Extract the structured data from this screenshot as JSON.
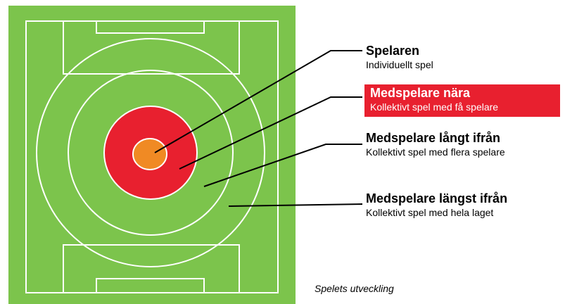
{
  "labels": [
    {
      "title": "Spelaren",
      "subtitle": "Individuellt spel"
    },
    {
      "title": "Medspelare nära",
      "subtitle": "Kollektivt spel med få spelare"
    },
    {
      "title": "Medspelare långt ifrån",
      "subtitle": "Kollektivt spel med flera spelare"
    },
    {
      "title": "Medspelare längst ifrån",
      "subtitle": "Kollektivt spel med hela laget"
    }
  ],
  "caption": "Spelets utveckling"
}
